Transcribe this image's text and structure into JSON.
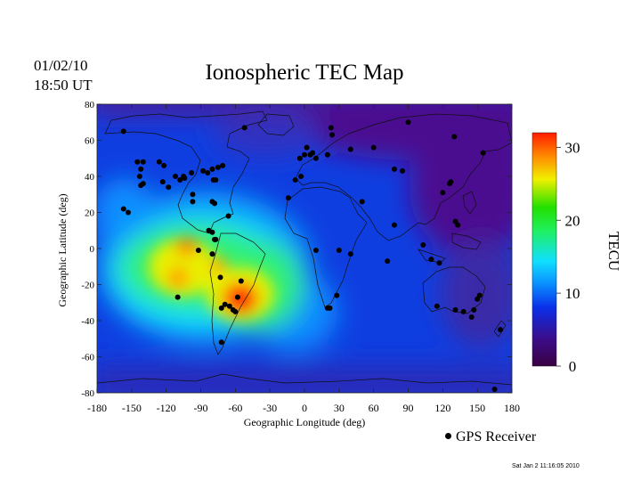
{
  "header": {
    "date": "01/02/10",
    "time": "18:50 UT"
  },
  "footer_stamp": "Sat Jan  2 11:16:05 2010",
  "legend_label": "GPS Receiver",
  "colors": {
    "low": "#3a0050",
    "mid_low": "#0055ff",
    "mid": "#00d6ff",
    "mid_high": "#22e000",
    "high": "#ff2000"
  },
  "chart_data": {
    "type": "heatmap",
    "title": "Ionospheric TEC Map",
    "xlabel": "Geographic Longitude (deg)",
    "ylabel": "Geographic Latitude (deg)",
    "xlim": [
      -180,
      180
    ],
    "ylim": [
      -80,
      80
    ],
    "x_ticks": [
      -180,
      -150,
      -120,
      -90,
      -60,
      -30,
      0,
      30,
      60,
      90,
      120,
      150,
      180
    ],
    "y_ticks": [
      80,
      60,
      40,
      20,
      0,
      -20,
      -40,
      -60,
      -80
    ],
    "colorbar": {
      "label": "TECU",
      "range": [
        0,
        32
      ],
      "ticks": [
        0,
        10,
        20,
        30
      ]
    },
    "hotspots": [
      {
        "lon": -55,
        "lat": -27,
        "tec": 32
      },
      {
        "lon": -105,
        "lat": -15,
        "tec": 26
      },
      {
        "lon": -95,
        "lat": 3,
        "tec": 25
      },
      {
        "lon": -80,
        "lat": -10,
        "tec": 20
      }
    ],
    "receivers": [
      [
        -157,
        65
      ],
      [
        -145,
        48
      ],
      [
        -140,
        48
      ],
      [
        -142,
        44
      ],
      [
        -143,
        40
      ],
      [
        -140,
        36
      ],
      [
        -142,
        35
      ],
      [
        -157,
        22
      ],
      [
        -153,
        20
      ],
      [
        -126,
        48
      ],
      [
        -122,
        46
      ],
      [
        -123,
        37
      ],
      [
        -118,
        34
      ],
      [
        -112,
        40
      ],
      [
        -105,
        40
      ],
      [
        -108,
        38
      ],
      [
        -104,
        39
      ],
      [
        -98,
        42
      ],
      [
        -88,
        43
      ],
      [
        -84,
        42
      ],
      [
        -80,
        44
      ],
      [
        -75,
        45
      ],
      [
        -71,
        46
      ],
      [
        -79,
        38
      ],
      [
        -77,
        38
      ],
      [
        -97,
        30
      ],
      [
        -97,
        26
      ],
      [
        -80,
        26
      ],
      [
        -78,
        25
      ],
      [
        -66,
        18
      ],
      [
        -83,
        10
      ],
      [
        -80,
        9
      ],
      [
        -78,
        5
      ],
      [
        -77,
        5
      ],
      [
        -92,
        -1
      ],
      [
        -80,
        -3
      ],
      [
        -73,
        -16
      ],
      [
        -110,
        -27
      ],
      [
        -72,
        -33
      ],
      [
        -69,
        -31
      ],
      [
        -65,
        -32
      ],
      [
        -62,
        -34
      ],
      [
        -60,
        -35
      ],
      [
        -58,
        -27
      ],
      [
        -55,
        -18
      ],
      [
        -72,
        -52
      ],
      [
        -52,
        67
      ],
      [
        -14,
        28
      ],
      [
        -8,
        38
      ],
      [
        -3,
        40
      ],
      [
        -4,
        50
      ],
      [
        0,
        52
      ],
      [
        5,
        52
      ],
      [
        7,
        53
      ],
      [
        10,
        50
      ],
      [
        2,
        56
      ],
      [
        20,
        52
      ],
      [
        24,
        63
      ],
      [
        23,
        67
      ],
      [
        40,
        55
      ],
      [
        60,
        56
      ],
      [
        90,
        70
      ],
      [
        130,
        62
      ],
      [
        155,
        53
      ],
      [
        85,
        43
      ],
      [
        78,
        44
      ],
      [
        78,
        13
      ],
      [
        72,
        -7
      ],
      [
        10,
        -1
      ],
      [
        30,
        -1
      ],
      [
        40,
        -3
      ],
      [
        28,
        -26
      ],
      [
        22,
        -33
      ],
      [
        20,
        -33
      ],
      [
        50,
        26
      ],
      [
        120,
        31
      ],
      [
        127,
        37
      ],
      [
        126,
        36
      ],
      [
        131,
        15
      ],
      [
        103,
        2
      ],
      [
        110,
        -6
      ],
      [
        117,
        -8
      ],
      [
        115,
        -32
      ],
      [
        131,
        -34
      ],
      [
        138,
        -35
      ],
      [
        145,
        -38
      ],
      [
        147,
        -34
      ],
      [
        150,
        -28
      ],
      [
        152,
        -26
      ],
      [
        133,
        13
      ],
      [
        170,
        -45
      ],
      [
        165,
        -78
      ]
    ]
  }
}
